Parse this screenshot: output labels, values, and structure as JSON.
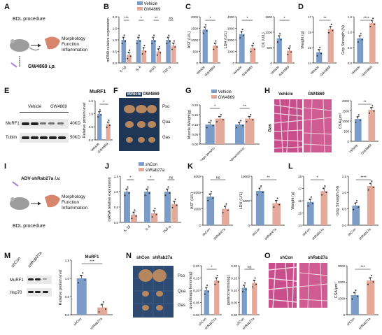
{
  "panels": {
    "A": "A",
    "B": "B",
    "C": "C",
    "D": "D",
    "E": "E",
    "F": "F",
    "G": "G",
    "H": "H",
    "I": "I",
    "J": "J",
    "K": "K",
    "L": "L",
    "M": "M",
    "N": "N",
    "O": "O"
  },
  "colors": {
    "ctrl": "#7a9cc6",
    "treat": "#e3a99a",
    "dot": "#2c2c2c",
    "tissue_bg": "#c94f8c",
    "tissue_fiber": "#e6b8cf",
    "plate": "#1f3656"
  },
  "panel_a": {
    "procedure": "BDL procedure",
    "drug": "GW4869",
    "route": "i.p.",
    "outcomes": [
      "Morphology",
      "Function",
      "Inflammation"
    ]
  },
  "panel_i": {
    "vector": "ADV-shRab27a",
    "route": "i.v.",
    "procedure": "BDL procedure",
    "outcomes": [
      "Morphology",
      "Function",
      "Inflammation"
    ]
  },
  "legend_top": {
    "ctrl": "Vehicle",
    "treat": "GW4869"
  },
  "legend_bottom": {
    "ctrl": "shCon",
    "treat": "shRab27a"
  },
  "panel_e": {
    "title": "MuRF1",
    "lanes": [
      "Vehicle",
      "GW4869"
    ],
    "rows": [
      {
        "name": "MuRF1",
        "size": "40KD"
      },
      {
        "name": "Tublin",
        "size": "50KD"
      }
    ]
  },
  "panel_f": {
    "labels": [
      "Vehicle",
      "GW4869"
    ],
    "tissues": [
      "Pso",
      "Qua",
      "Gas"
    ]
  },
  "panel_h": {
    "labels": [
      "Vehicle",
      "GW4869"
    ],
    "tissue": "Gas"
  },
  "panel_m": {
    "lanes": [
      "shCon",
      "shRab27a"
    ],
    "rows": [
      "MuRF1",
      "Hsp70"
    ]
  },
  "panel_n": {
    "labels": [
      "shCon",
      "shRab27a"
    ],
    "tissues": [
      "Pso",
      "Qua",
      "Gas"
    ]
  },
  "panel_o": {
    "labels": [
      "shCon",
      "shRab27a"
    ]
  },
  "chart_data": [
    {
      "id": "B",
      "type": "bar",
      "ylabel": "mRNA relative expression",
      "ylim": [
        0,
        2.0
      ],
      "yticks": [
        "0.0",
        "0.5",
        "1.0",
        "1.5",
        "2.0"
      ],
      "categories": [
        "IL-1β",
        "IL-6",
        "iNOS",
        "TNF-α"
      ],
      "series": [
        {
          "name": "Vehicle",
          "values": [
            1.0,
            1.0,
            1.0,
            1.0
          ]
        },
        {
          "name": "GW4869",
          "values": [
            0.35,
            0.55,
            0.5,
            0.75
          ]
        }
      ],
      "significance": [
        "***",
        "*",
        "**",
        "ns"
      ]
    },
    {
      "id": "C1",
      "type": "bar",
      "ylabel": "AST (U/L)",
      "ylim": [
        0,
        2000
      ],
      "yticks": [
        "0",
        "500",
        "1000",
        "1500",
        "2000"
      ],
      "categories": [
        "Vehicle",
        "GW4869"
      ],
      "values": [
        1450,
        750
      ],
      "significance": "*"
    },
    {
      "id": "C2",
      "type": "bar",
      "ylabel": "LDH (U/L)",
      "ylim": [
        0,
        4000
      ],
      "yticks": [
        "0",
        "1000",
        "2000",
        "3000",
        "4000"
      ],
      "categories": [
        "Vehicle",
        "GW4869"
      ],
      "values": [
        2500,
        1300
      ],
      "significance": "*"
    },
    {
      "id": "C3",
      "type": "bar",
      "ylabel": "CK (U/L)",
      "ylim": [
        0,
        1500
      ],
      "yticks": [
        "0",
        "500",
        "1000",
        "1500"
      ],
      "categories": [
        "Vehicle",
        "GW4869"
      ],
      "values": [
        800,
        400
      ],
      "significance": "*"
    },
    {
      "id": "D1",
      "type": "bar",
      "ylabel": "Weight (g)",
      "ylim": [
        14,
        17
      ],
      "yticks": [
        "14",
        "15",
        "16",
        "17"
      ],
      "categories": [
        "Vehicle",
        "GW4869"
      ],
      "values": [
        14.7,
        16.2
      ],
      "significance": "**"
    },
    {
      "id": "D2",
      "type": "bar",
      "ylabel": "Grip Strength (N)",
      "ylim": [
        0,
        1.5
      ],
      "yticks": [
        "0.0",
        "0.5",
        "1.0",
        "1.5"
      ],
      "categories": [
        "Vehicle",
        "GW4869"
      ],
      "values": [
        0.8,
        1.3
      ],
      "significance": "****"
    },
    {
      "id": "E",
      "type": "bar",
      "ylabel": "Relative protein level",
      "ylim": [
        0,
        1.5
      ],
      "yticks": [
        "0.0",
        "0.5",
        "1.0",
        "1.5"
      ],
      "categories": [
        "Vehicle",
        "GW4869"
      ],
      "values": [
        1.0,
        0.6
      ],
      "significance": "*"
    },
    {
      "id": "G",
      "type": "bar",
      "ylabel": "Muscle Weight(g)",
      "ylim": [
        0,
        0.2
      ],
      "yticks": [
        "0.00",
        "0.05",
        "0.10",
        "0.15",
        "0.20"
      ],
      "categories": [
        "quadriceps femoris",
        "gastrocnemius"
      ],
      "series": [
        {
          "name": "Vehicle",
          "values": [
            0.1,
            0.1
          ]
        },
        {
          "name": "GW4869",
          "values": [
            0.13,
            0.13
          ]
        }
      ],
      "significance": [
        "*",
        "**"
      ]
    },
    {
      "id": "H",
      "type": "bar",
      "ylabel": "CSA/μm²",
      "ylim": [
        0,
        2000
      ],
      "yticks": [
        "0",
        "500",
        "1000",
        "1500",
        "2000"
      ],
      "categories": [
        "Vehicle",
        "GW4869"
      ],
      "values": [
        1100,
        1550
      ],
      "significance": "**"
    },
    {
      "id": "J",
      "type": "bar",
      "ylabel": "mRNA relative expression",
      "ylim": [
        0,
        1.5
      ],
      "yticks": [
        "0.0",
        "0.5",
        "1.0",
        "1.5"
      ],
      "categories": [
        "IL-1β",
        "IL-6",
        "TNF-α"
      ],
      "series": [
        {
          "name": "shCon",
          "values": [
            1.0,
            1.0,
            1.0
          ]
        },
        {
          "name": "shRab27a",
          "values": [
            0.25,
            0.3,
            0.6
          ]
        }
      ],
      "significance": [
        "*",
        "*",
        "ns"
      ]
    },
    {
      "id": "K1",
      "type": "bar",
      "ylabel": "AST (U/L)",
      "ylim": [
        0,
        6000
      ],
      "yticks": [
        "0",
        "2000",
        "4000",
        "6000"
      ],
      "categories": [
        "shCon",
        "shRab27a"
      ],
      "values": [
        3500,
        2000
      ],
      "significance": "ns"
    },
    {
      "id": "K2",
      "type": "bar",
      "ylabel": "LDH (U/L)",
      "ylim": [
        0,
        10000
      ],
      "yticks": [
        "0",
        "5000",
        "10000"
      ],
      "categories": [
        "shCon",
        "shRab27a"
      ],
      "values": [
        7000,
        4500
      ],
      "significance": "**"
    },
    {
      "id": "L1",
      "type": "bar",
      "ylabel": "Weight (g)",
      "ylim": [
        14,
        18
      ],
      "yticks": [
        "14",
        "15",
        "16",
        "17",
        "18"
      ],
      "categories": [
        "shCon",
        "shRab27a"
      ],
      "values": [
        15.9,
        16.8
      ],
      "significance": "*"
    },
    {
      "id": "L2",
      "type": "bar",
      "ylabel": "Grip Strength (N)",
      "ylim": [
        0,
        1.5
      ],
      "yticks": [
        "0.0",
        "0.5",
        "1.0",
        "1.5"
      ],
      "categories": [
        "shCon",
        "shRab27a"
      ],
      "values": [
        0.6,
        1.2
      ],
      "significance": "****"
    },
    {
      "id": "M",
      "type": "bar",
      "title": "MuRF1",
      "ylabel": "Relative protein level",
      "ylim": [
        0,
        1.5
      ],
      "yticks": [
        "0.0",
        "0.5",
        "1.0",
        "1.5"
      ],
      "categories": [
        "shCon",
        "shRab27a"
      ],
      "values": [
        1.0,
        0.2
      ],
      "significance": "***"
    },
    {
      "id": "N1",
      "type": "bar",
      "ylabel": "quadriceps femoris(g)",
      "ylim": [
        0,
        0.2
      ],
      "yticks": [
        "0.00",
        "0.05",
        "0.10",
        "0.15",
        "0.20"
      ],
      "categories": [
        "shCon",
        "shRab27a"
      ],
      "values": [
        0.1,
        0.14
      ],
      "significance": "*"
    },
    {
      "id": "N2",
      "type": "bar",
      "ylabel": "gastrocnemius(g)",
      "ylim": [
        0,
        0.2
      ],
      "yticks": [
        "0.00",
        "0.05",
        "0.10",
        "0.15",
        "0.20"
      ],
      "categories": [
        "shCon",
        "shRab27a"
      ],
      "values": [
        0.11,
        0.13
      ],
      "significance": "ns"
    },
    {
      "id": "O",
      "type": "bar",
      "ylabel": "CSA/μm²",
      "ylim": [
        0,
        3000
      ],
      "yticks": [
        "0",
        "1000",
        "2000",
        "3000"
      ],
      "categories": [
        "shCon",
        "shRab27a"
      ],
      "values": [
        1200,
        2100
      ],
      "significance": "***"
    }
  ]
}
